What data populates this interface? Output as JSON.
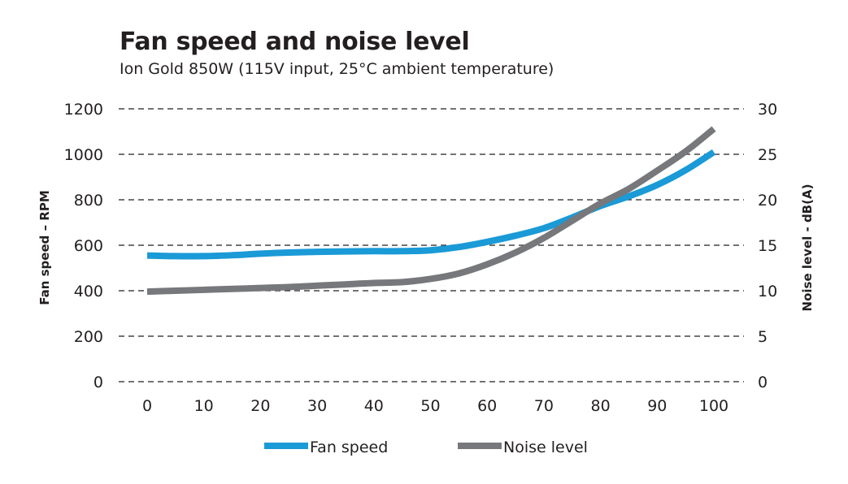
{
  "chart_data": {
    "type": "line",
    "title": "Fan speed and noise level",
    "subtitle": "Ion Gold 850W (115V input, 25°C ambient temperature)",
    "xlabel": "",
    "ylabel_left": "Fan speed – RPM",
    "ylabel_right": "Noise level - dB(A)",
    "x_ticks": [
      "0",
      "10",
      "20",
      "30",
      "40",
      "50",
      "60",
      "70",
      "80",
      "90",
      "100"
    ],
    "y_left_ticks": [
      "0",
      "200",
      "400",
      "600",
      "800",
      "1000",
      "1200"
    ],
    "y_right_ticks": [
      "0",
      "5",
      "10",
      "15",
      "20",
      "25",
      "30"
    ],
    "xlim": [
      0,
      100
    ],
    "ylim_left": [
      0,
      1200
    ],
    "ylim_right": [
      0,
      30
    ],
    "grid": true,
    "legend_position": "bottom",
    "series": [
      {
        "name": "Fan speed",
        "axis": "left",
        "color": "#1a9ad6",
        "x": [
          0,
          5,
          10,
          15,
          20,
          25,
          30,
          35,
          40,
          45,
          50,
          55,
          60,
          65,
          70,
          75,
          80,
          85,
          90,
          95,
          100
        ],
        "values": [
          555,
          552,
          552,
          556,
          563,
          568,
          571,
          573,
          574,
          574,
          578,
          592,
          615,
          642,
          675,
          722,
          773,
          815,
          865,
          930,
          1010
        ]
      },
      {
        "name": "Noise level",
        "axis": "right",
        "color": "#77787b",
        "x": [
          0,
          5,
          10,
          15,
          20,
          25,
          30,
          35,
          40,
          45,
          50,
          55,
          60,
          65,
          70,
          75,
          80,
          85,
          90,
          95,
          100
        ],
        "values": [
          9.9,
          10.0,
          10.1,
          10.2,
          10.3,
          10.4,
          10.55,
          10.7,
          10.85,
          10.95,
          11.3,
          11.9,
          12.9,
          14.2,
          15.8,
          17.7,
          19.6,
          21.2,
          23.2,
          25.3,
          27.8
        ]
      }
    ]
  }
}
